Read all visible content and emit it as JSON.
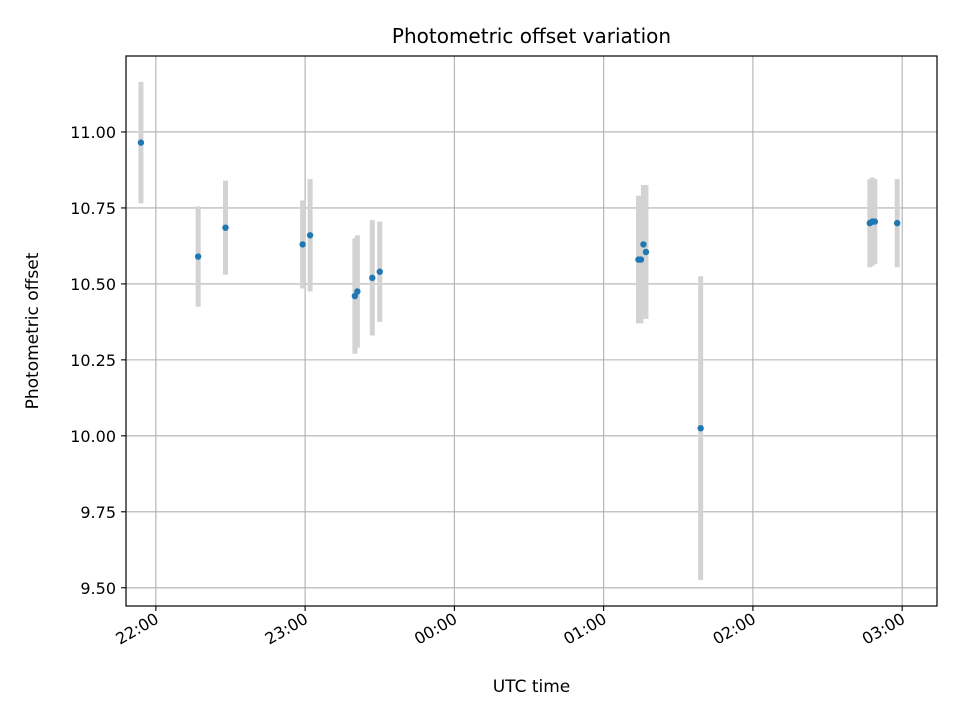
{
  "chart_data": {
    "type": "scatter",
    "title": "Photometric offset variation",
    "xlabel": "UTC time",
    "ylabel": "Photometric offset",
    "grid": true,
    "x_axis_kind": "time",
    "x_ticks": [
      "22:00",
      "23:00",
      "00:00",
      "01:00",
      "02:00",
      "03:00"
    ],
    "y_ticks": [
      "9.50",
      "9.75",
      "10.00",
      "10.25",
      "10.50",
      "10.75",
      "11.00"
    ],
    "ylim": [
      9.44,
      11.25
    ],
    "xlim": [
      "21:48",
      "03:14"
    ],
    "colors": {
      "point": "#1f77b4",
      "errorbar": "#d3d3d3",
      "grid": "#b0b0b0"
    },
    "series": [
      {
        "points": [
          {
            "time": "21:54",
            "y": 10.965,
            "err": 0.2
          },
          {
            "time": "22:17",
            "y": 10.59,
            "err": 0.165
          },
          {
            "time": "22:28",
            "y": 10.685,
            "err": 0.155
          },
          {
            "time": "22:59",
            "y": 10.63,
            "err": 0.145
          },
          {
            "time": "23:02",
            "y": 10.66,
            "err": 0.185
          },
          {
            "time": "23:20",
            "y": 10.46,
            "err": 0.19
          },
          {
            "time": "23:21",
            "y": 10.475,
            "err": 0.185
          },
          {
            "time": "23:27",
            "y": 10.52,
            "err": 0.19
          },
          {
            "time": "23:30",
            "y": 10.54,
            "err": 0.165
          },
          {
            "time": "01:14",
            "y": 10.58,
            "err": 0.21
          },
          {
            "time": "01:15",
            "y": 10.58,
            "err": 0.21
          },
          {
            "time": "01:16",
            "y": 10.63,
            "err": 0.195
          },
          {
            "time": "01:17",
            "y": 10.605,
            "err": 0.22
          },
          {
            "time": "01:39",
            "y": 10.025,
            "err": 0.5
          },
          {
            "time": "02:47",
            "y": 10.7,
            "err": 0.145
          },
          {
            "time": "02:48",
            "y": 10.705,
            "err": 0.145
          },
          {
            "time": "02:49",
            "y": 10.705,
            "err": 0.14
          },
          {
            "time": "02:58",
            "y": 10.7,
            "err": 0.145
          }
        ]
      }
    ]
  }
}
